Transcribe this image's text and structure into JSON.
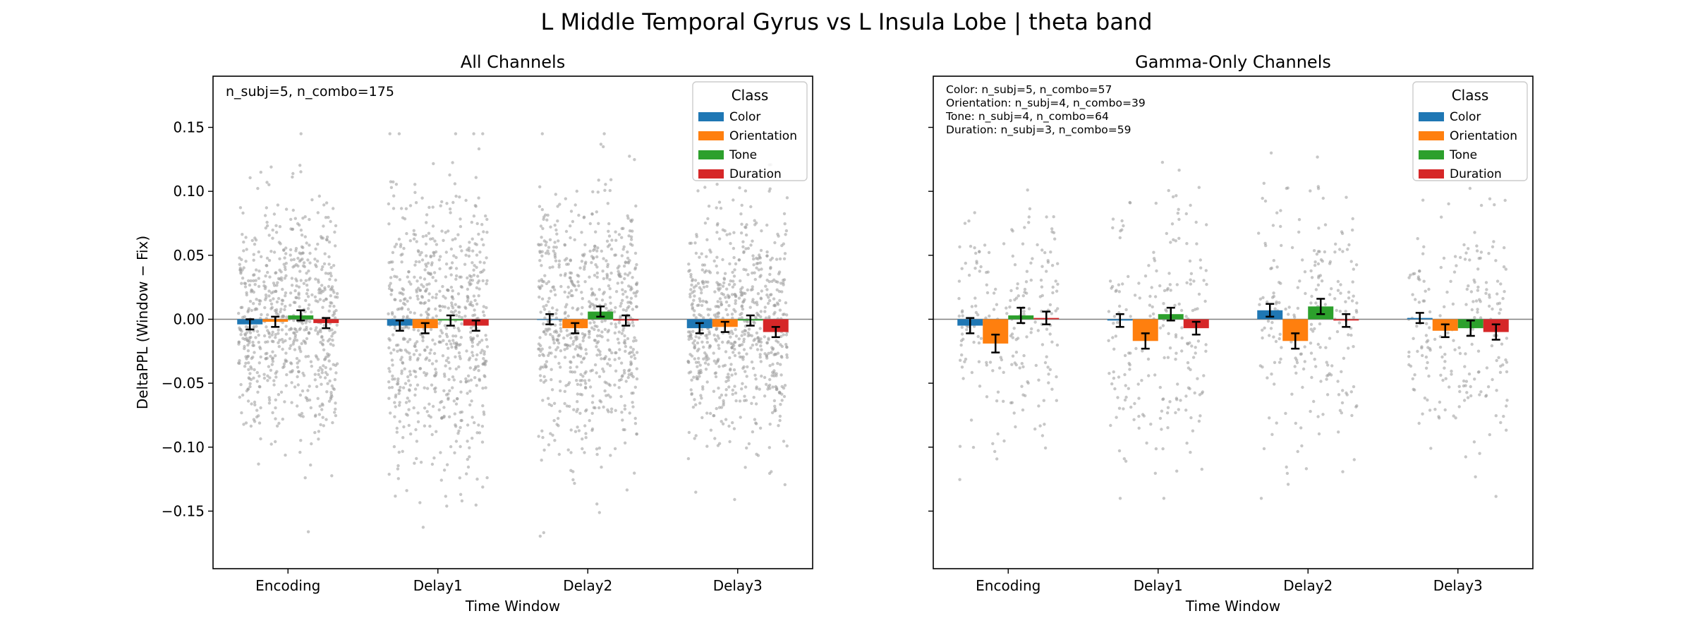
{
  "figure": {
    "title": "L Middle Temporal Gyrus vs L Insula Lobe  |  theta band"
  },
  "colors": {
    "Color": "#1f77b4",
    "Orientation": "#ff7f0e",
    "Tone": "#2ca02c",
    "Duration": "#d62728",
    "points": "#999999",
    "errorbar": "#000000",
    "zero_line": "#808080"
  },
  "chart_data": [
    {
      "type": "bar",
      "title": "All Channels",
      "xlabel": "Time Window",
      "ylabel": "DeltaPPL (Window − Fix)",
      "categories": [
        "Encoding",
        "Delay1",
        "Delay2",
        "Delay3"
      ],
      "ylim": [
        -0.195,
        0.19
      ],
      "yticks": [
        -0.15,
        -0.1,
        -0.05,
        0.0,
        0.05,
        0.1,
        0.15
      ],
      "ytick_labels": [
        "−0.15",
        "−0.10",
        "−0.05",
        "0.00",
        "0.05",
        "0.10",
        "0.15"
      ],
      "legend": {
        "title": "Class",
        "position": "top-right",
        "entries": [
          "Color",
          "Orientation",
          "Tone",
          "Duration"
        ]
      },
      "annotation": [
        "n_subj=5, n_combo=175"
      ],
      "grid": false,
      "zero_line": true,
      "series": [
        {
          "name": "Color",
          "values": [
            -0.004,
            -0.005,
            0.0,
            -0.007
          ],
          "err": [
            0.004,
            0.004,
            0.004,
            0.004
          ],
          "n_points": 175
        },
        {
          "name": "Orientation",
          "values": [
            -0.002,
            -0.007,
            -0.007,
            -0.006
          ],
          "err": [
            0.004,
            0.004,
            0.004,
            0.004
          ],
          "n_points": 175
        },
        {
          "name": "Tone",
          "values": [
            0.003,
            -0.001,
            0.006,
            -0.001
          ],
          "err": [
            0.004,
            0.004,
            0.004,
            0.004
          ],
          "n_points": 175
        },
        {
          "name": "Duration",
          "values": [
            -0.003,
            -0.005,
            -0.001,
            -0.01
          ],
          "err": [
            0.004,
            0.004,
            0.004,
            0.004
          ],
          "n_points": 175
        }
      ],
      "points_spread": [
        0.045,
        0.055,
        0.05,
        0.045
      ],
      "points_range": [
        -0.18,
        0.145
      ]
    },
    {
      "type": "bar",
      "title": "Gamma-Only Channels",
      "xlabel": "Time Window",
      "ylabel": "",
      "categories": [
        "Encoding",
        "Delay1",
        "Delay2",
        "Delay3"
      ],
      "ylim": [
        -0.195,
        0.19
      ],
      "yticks": [
        -0.15,
        -0.1,
        -0.05,
        0.0,
        0.05,
        0.1,
        0.15
      ],
      "ytick_labels": [
        "",
        "",
        "",
        "",
        "",
        "",
        ""
      ],
      "legend": {
        "title": "Class",
        "position": "top-right",
        "entries": [
          "Color",
          "Orientation",
          "Tone",
          "Duration"
        ]
      },
      "annotation": [
        "Color: n_subj=5, n_combo=57",
        "Orientation: n_subj=4, n_combo=39",
        "Tone: n_subj=4, n_combo=64",
        "Duration: n_subj=3, n_combo=59"
      ],
      "grid": false,
      "zero_line": true,
      "series": [
        {
          "name": "Color",
          "values": [
            -0.005,
            -0.001,
            0.007,
            0.001
          ],
          "err": [
            0.006,
            0.005,
            0.005,
            0.004
          ],
          "n_points": 57
        },
        {
          "name": "Orientation",
          "values": [
            -0.019,
            -0.017,
            -0.017,
            -0.009
          ],
          "err": [
            0.007,
            0.006,
            0.006,
            0.005
          ],
          "n_points": 39
        },
        {
          "name": "Tone",
          "values": [
            0.003,
            0.004,
            0.01,
            -0.007
          ],
          "err": [
            0.006,
            0.005,
            0.006,
            0.006
          ],
          "n_points": 64
        },
        {
          "name": "Duration",
          "values": [
            0.001,
            -0.007,
            -0.001,
            -0.01
          ],
          "err": [
            0.005,
            0.005,
            0.005,
            0.006
          ],
          "n_points": 59
        }
      ],
      "points_spread": [
        0.045,
        0.055,
        0.05,
        0.045
      ],
      "points_range": [
        -0.14,
        0.13
      ]
    }
  ]
}
